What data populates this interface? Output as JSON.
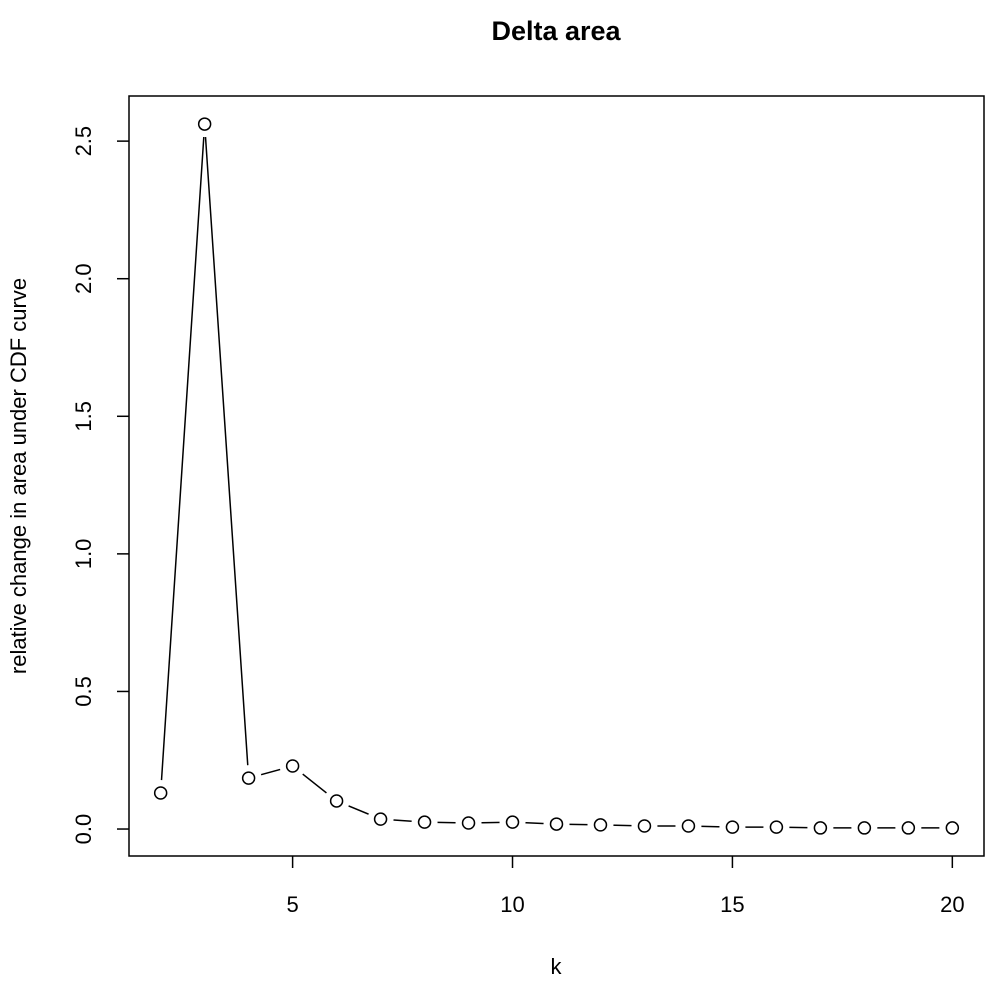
{
  "chart_data": {
    "type": "line",
    "title": "Delta area",
    "x_label": "k",
    "y_label": "relative change in area under CDF curve",
    "x": [
      2,
      3,
      4,
      5,
      6,
      7,
      8,
      9,
      10,
      11,
      12,
      13,
      14,
      15,
      16,
      17,
      18,
      19,
      20
    ],
    "series": [
      {
        "color": "#000000",
        "values": [
          0.131,
          2.562,
          0.185,
          0.229,
          0.102,
          0.036,
          0.025,
          0.022,
          0.025,
          0.018,
          0.015,
          0.011,
          0.011,
          0.007,
          0.007,
          0.004,
          0.004,
          0.004,
          0.004
        ]
      }
    ],
    "xlim": [
      1.28,
      20.72
    ],
    "xticks": [
      5,
      10,
      15,
      20
    ],
    "ylim": [
      -0.098,
      2.664
    ],
    "yticks": [
      {
        "value": 0,
        "label": "0.0"
      },
      0.5,
      {
        "value": 1,
        "label": "1.0"
      },
      1.5,
      {
        "value": 2,
        "label": "2.0"
      },
      2.5
    ]
  }
}
